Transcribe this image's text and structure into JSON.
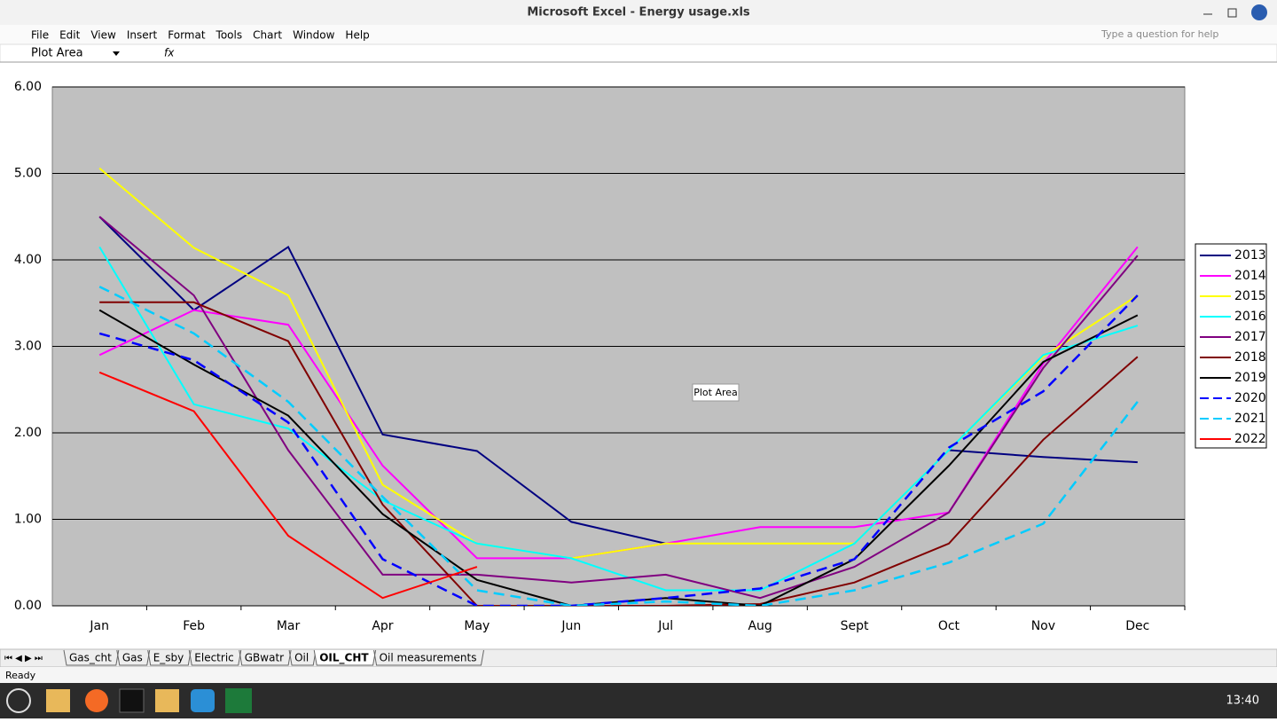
{
  "window": {
    "title": "Microsoft Excel - Energy usage.xls",
    "menu": [
      "File",
      "Edit",
      "View",
      "Insert",
      "Format",
      "Tools",
      "Chart",
      "Window",
      "Help"
    ],
    "help_box": "Type a question for help",
    "name_box": "Plot Area",
    "tooltip": "Plot Area",
    "sheet_tabs": [
      "Gas_cht",
      "Gas",
      "E_sby",
      "Electric",
      "GBwatr",
      "Oil",
      "OIL_CHT",
      "Oil measurements"
    ],
    "active_tab": 6,
    "status": "Ready",
    "clock": "13:40"
  },
  "chart_data": {
    "type": "line",
    "grid": true,
    "legend": "right",
    "categories": [
      "Jan",
      "Feb",
      "Mar",
      "Apr",
      "May",
      "Jun",
      "Jul",
      "Aug",
      "Sept",
      "Oct",
      "Nov",
      "Dec"
    ],
    "ylim": [
      0,
      6
    ],
    "yticks": [
      {
        "value": 0,
        "label": "0.00"
      },
      {
        "value": 1,
        "label": "1.00"
      },
      {
        "value": 2,
        "label": "2.00"
      },
      {
        "value": 3,
        "label": "3.00"
      },
      {
        "value": 4,
        "label": "4.00"
      },
      {
        "value": 5,
        "label": "5.00"
      },
      {
        "value": 6,
        "label": "6.00"
      }
    ],
    "series": [
      {
        "name": "2013",
        "color": "#000080",
        "dash": false,
        "values": [
          4.5,
          3.42,
          4.15,
          1.98,
          1.79,
          0.97,
          0.72,
          null,
          null,
          1.8,
          1.72,
          1.66
        ]
      },
      {
        "name": "2014",
        "color": "#ff00ff",
        "dash": false,
        "values": [
          2.9,
          3.42,
          3.25,
          1.62,
          0.55,
          0.55,
          0.72,
          0.91,
          0.91,
          1.08,
          2.8,
          4.15
        ]
      },
      {
        "name": "2015",
        "color": "#ffff00",
        "dash": false,
        "values": [
          5.06,
          4.14,
          3.59,
          1.4,
          0.72,
          0.55,
          0.72,
          0.72,
          0.72,
          1.8,
          2.88,
          3.59
        ]
      },
      {
        "name": "2016",
        "color": "#00ffff",
        "dash": false,
        "values": [
          4.15,
          2.33,
          2.05,
          1.22,
          0.72,
          0.55,
          0.18,
          0.18,
          0.72,
          1.8,
          2.9,
          3.24
        ]
      },
      {
        "name": "2017",
        "color": "#800080",
        "dash": false,
        "values": [
          4.5,
          3.59,
          1.8,
          0.36,
          0.36,
          0.27,
          0.36,
          0.09,
          0.45,
          1.08,
          2.75,
          4.05
        ]
      },
      {
        "name": "2018",
        "color": "#800000",
        "dash": false,
        "values": [
          3.51,
          3.51,
          3.06,
          1.17,
          0,
          0,
          0,
          0.02,
          0.27,
          0.72,
          1.92,
          2.88
        ]
      },
      {
        "name": "2019",
        "color": "#000000",
        "dash": false,
        "values": [
          3.42,
          2.79,
          2.2,
          1.06,
          0.3,
          0,
          0.09,
          0,
          0.54,
          1.62,
          2.82,
          3.36
        ]
      },
      {
        "name": "2020",
        "color": "#0000ff",
        "dash": true,
        "values": [
          3.15,
          2.84,
          2.12,
          0.54,
          0,
          0,
          0.09,
          0.2,
          0.54,
          1.83,
          2.48,
          3.59
        ]
      },
      {
        "name": "2021",
        "color": "#00ccff",
        "dash": true,
        "values": [
          3.69,
          3.15,
          2.36,
          1.26,
          0.18,
          0,
          0.05,
          0,
          0.18,
          0.5,
          0.95,
          2.36
        ]
      },
      {
        "name": "2022",
        "color": "#ff0000",
        "dash": false,
        "values": [
          2.7,
          2.25,
          0.81,
          0.09,
          0.45,
          null,
          null,
          null,
          null,
          null,
          null,
          null
        ]
      }
    ]
  }
}
